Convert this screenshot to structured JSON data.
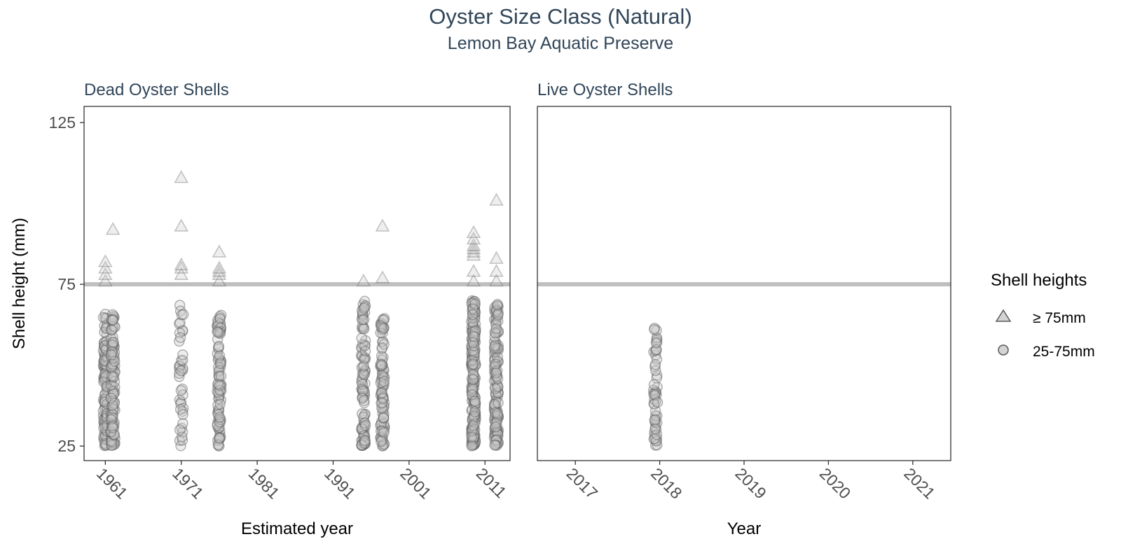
{
  "chart_data": {
    "title": "Oyster Size Class (Natural)",
    "subtitle": "Lemon Bay Aquatic Preserve",
    "type": "scatter",
    "ylabel": "Shell height (mm)",
    "ylim": [
      20.5,
      130
    ],
    "yticks": [
      25,
      75,
      125
    ],
    "reference_line": 75,
    "colors": {
      "reference_line": "#bfbfbf",
      "point_stroke": "#5a5a5a",
      "point_fill": "#c8c8c8",
      "frame": "#333333",
      "title": "#314659"
    },
    "legend": {
      "title": "Shell heights",
      "position": "right",
      "entries": [
        {
          "label": "≥ 75mm",
          "shape": "triangle"
        },
        {
          "label": "25-75mm",
          "shape": "circle"
        }
      ]
    },
    "panels": [
      {
        "strip": "Dead Oyster Shells",
        "xlabel": "Estimated year",
        "xlim": [
          1958.2,
          2014.3
        ],
        "xticks": [
          1961,
          1971,
          1981,
          1991,
          2001,
          2011
        ],
        "series": [
          {
            "x": 1961.0,
            "ymin": 25,
            "ymax": 66,
            "n": 130,
            "large": [
              76,
              78,
              80,
              82
            ]
          },
          {
            "x": 1962.0,
            "ymin": 25,
            "ymax": 66,
            "n": 110,
            "large": [
              92
            ]
          },
          {
            "x": 1971.0,
            "ymin": 25,
            "ymax": 72,
            "n": 40,
            "large": [
              78,
              80,
              81,
              93,
              108
            ]
          },
          {
            "x": 1976.0,
            "ymin": 25,
            "ymax": 66,
            "n": 90,
            "large": [
              76,
              78,
              79,
              80,
              85
            ]
          },
          {
            "x": 1995.0,
            "ymin": 25,
            "ymax": 70,
            "n": 100,
            "large": [
              76
            ]
          },
          {
            "x": 1997.5,
            "ymin": 25,
            "ymax": 66,
            "n": 95,
            "large": [
              77,
              93
            ]
          },
          {
            "x": 2009.5,
            "ymin": 25,
            "ymax": 70,
            "n": 200,
            "large": [
              76,
              79,
              84,
              85,
              86,
              87,
              89,
              91
            ]
          },
          {
            "x": 2012.5,
            "ymin": 25,
            "ymax": 70,
            "n": 140,
            "large": [
              76,
              79,
              83,
              101
            ]
          }
        ]
      },
      {
        "strip": "Live Oyster Shells",
        "xlabel": "Year",
        "xlim": [
          2016.55,
          2021.45
        ],
        "xticks": [
          2017,
          2018,
          2019,
          2020,
          2021
        ],
        "series": [
          {
            "x": 2017.95,
            "ymin": 25,
            "ymax": 62,
            "n": 55,
            "large": []
          }
        ]
      }
    ]
  }
}
